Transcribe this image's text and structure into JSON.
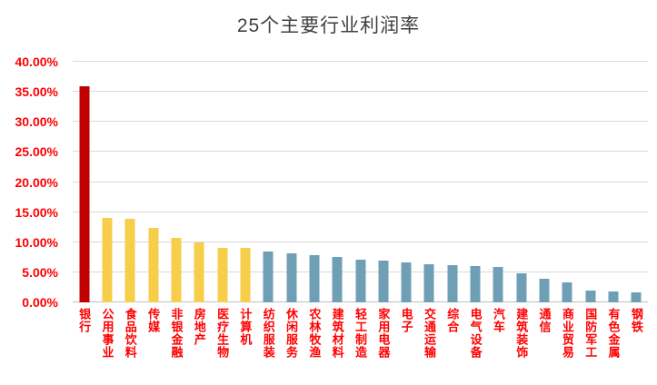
{
  "chart_data": {
    "type": "bar",
    "title": "25个主要行业利润率",
    "categories": [
      "银行",
      "公用事业",
      "食品饮料",
      "传媒",
      "非银金融",
      "房地产",
      "医疗生物",
      "计算机",
      "纺织服装",
      "休闲服务",
      "农林牧渔",
      "建筑材料",
      "轻工制造",
      "家用电器",
      "电子",
      "交通运输",
      "综合",
      "电气设备",
      "汽车",
      "建筑装饰",
      "通信",
      "商业贸易",
      "国防军工",
      "有色金属",
      "钢铁"
    ],
    "values": [
      36.0,
      14.0,
      13.9,
      12.4,
      10.7,
      10.0,
      9.1,
      9.0,
      8.4,
      8.1,
      7.8,
      7.5,
      7.1,
      6.9,
      6.7,
      6.3,
      6.2,
      6.1,
      5.9,
      4.8,
      3.9,
      3.3,
      2.0,
      1.8,
      1.6
    ],
    "bar_colors": [
      "#c00000",
      "#f7ce4a",
      "#f7ce4a",
      "#f7ce4a",
      "#f7ce4a",
      "#f7ce4a",
      "#f7ce4a",
      "#f7ce4a",
      "#6f9fb5",
      "#6f9fb5",
      "#6f9fb5",
      "#6f9fb5",
      "#6f9fb5",
      "#6f9fb5",
      "#6f9fb5",
      "#6f9fb5",
      "#6f9fb5",
      "#6f9fb5",
      "#6f9fb5",
      "#6f9fb5",
      "#6f9fb5",
      "#6f9fb5",
      "#6f9fb5",
      "#6f9fb5",
      "#6f9fb5"
    ],
    "ylim": [
      0,
      40
    ],
    "ytick_step": 5,
    "ytick_labels": [
      "0.00%",
      "5.00%",
      "10.00%",
      "15.00%",
      "20.00%",
      "25.00%",
      "30.00%",
      "35.00%",
      "40.00%"
    ],
    "grid": true,
    "legend": "none",
    "axis_label_color": "#ff0000",
    "title_color": "#3f3f3f",
    "gridline_color": "#d9d9d9"
  }
}
